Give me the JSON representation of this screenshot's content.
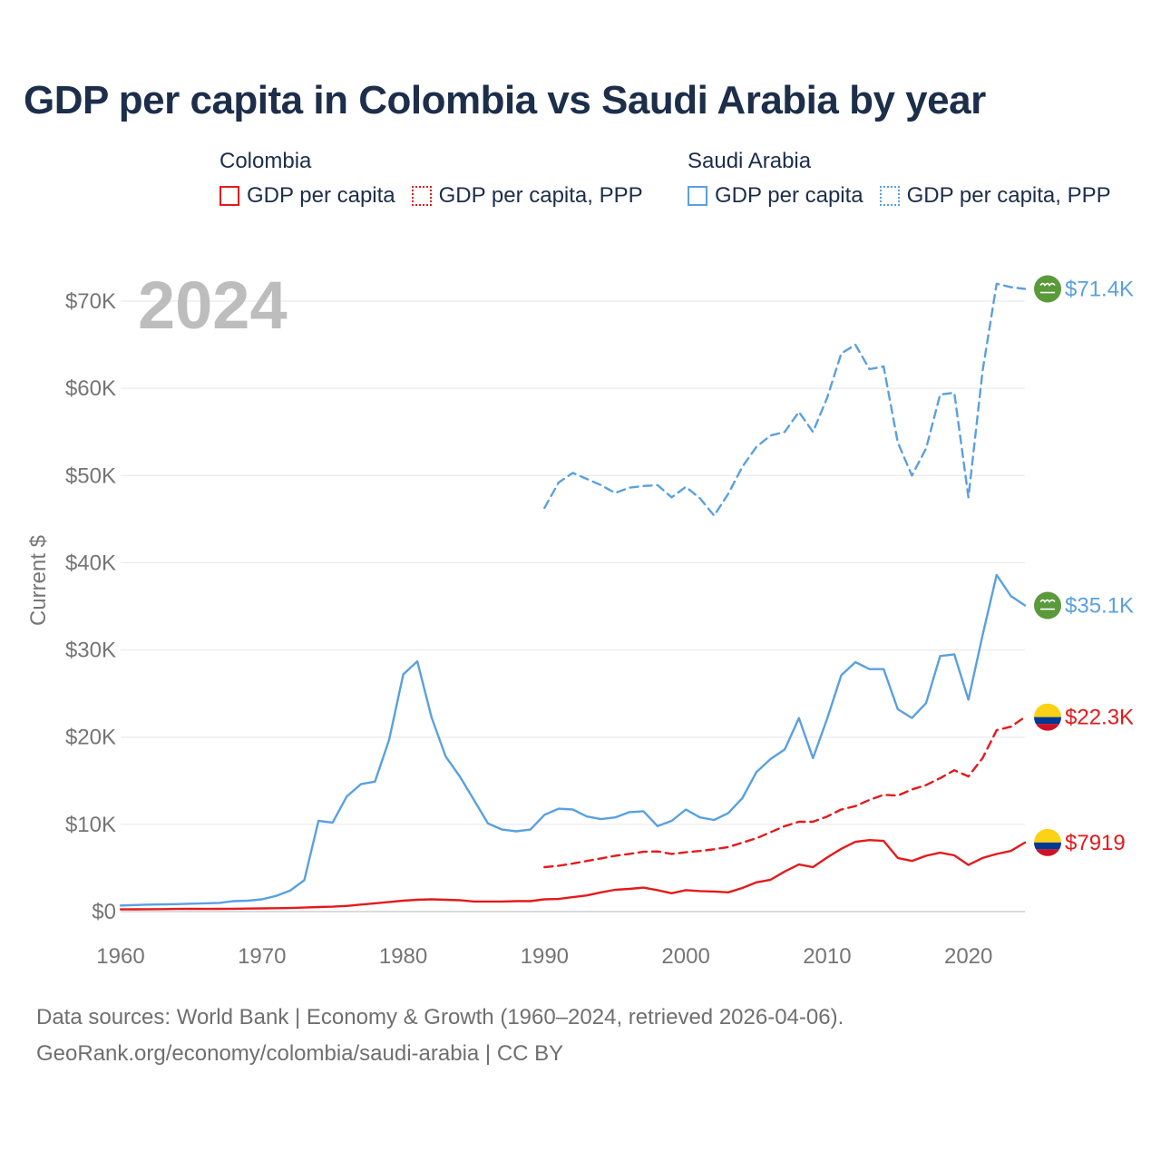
{
  "title": "GDP per capita in Colombia vs Saudi Arabia by year",
  "legend": {
    "colombia": {
      "name": "Colombia",
      "items": [
        {
          "label": "GDP per capita",
          "style": "solid",
          "color": "#e41a1c"
        },
        {
          "label": "GDP per capita, PPP",
          "style": "dotted",
          "color": "#e41a1c"
        }
      ]
    },
    "saudi": {
      "name": "Saudi Arabia",
      "items": [
        {
          "label": "GDP per capita",
          "style": "solid",
          "color": "#5aa0e0"
        },
        {
          "label": "GDP per capita, PPP",
          "style": "dotted",
          "color": "#5aa0e0"
        }
      ]
    }
  },
  "year_label": "2024",
  "sources": {
    "line1": "Data sources: World Bank | Economy & Growth (1960–2024, retrieved 2026-04-06).",
    "line2": "GeoRank.org/economy/colombia/saudi-arabia | CC BY"
  },
  "chart_data": {
    "type": "line",
    "title": "GDP per capita in Colombia vs Saudi Arabia by year",
    "xlabel": "",
    "ylabel": "Current $",
    "xlim": [
      1960,
      2024
    ],
    "ylim": [
      0,
      70000
    ],
    "x_ticks": [
      1960,
      1970,
      1980,
      1990,
      2000,
      2010,
      2020
    ],
    "y_ticks": [
      0,
      10000,
      20000,
      30000,
      40000,
      50000,
      60000,
      70000
    ],
    "y_tick_labels": [
      "$0",
      "$10K",
      "$20K",
      "$30K",
      "$40K",
      "$50K",
      "$60K",
      "$70K"
    ],
    "grid": true,
    "series": [
      {
        "name": "Colombia GDP per capita",
        "color": "#e41a1c",
        "dash": false,
        "end_label": "$7919",
        "flag": "colombia",
        "x": [
          1960,
          1961,
          1962,
          1963,
          1964,
          1965,
          1966,
          1967,
          1968,
          1969,
          1970,
          1971,
          1972,
          1973,
          1974,
          1975,
          1976,
          1977,
          1978,
          1979,
          1980,
          1981,
          1982,
          1983,
          1984,
          1985,
          1986,
          1987,
          1988,
          1989,
          1990,
          1991,
          1992,
          1993,
          1994,
          1995,
          1996,
          1997,
          1998,
          1999,
          2000,
          2001,
          2002,
          2003,
          2004,
          2005,
          2006,
          2007,
          2008,
          2009,
          2010,
          2011,
          2012,
          2013,
          2014,
          2015,
          2016,
          2017,
          2018,
          2019,
          2020,
          2021,
          2022,
          2023,
          2024
        ],
        "values": [
          250,
          260,
          270,
          280,
          300,
          310,
          300,
          310,
          320,
          340,
          360,
          380,
          410,
          460,
          520,
          560,
          650,
          800,
          950,
          1100,
          1250,
          1350,
          1400,
          1350,
          1300,
          1150,
          1150,
          1150,
          1200,
          1200,
          1400,
          1450,
          1650,
          1850,
          2200,
          2500,
          2600,
          2750,
          2450,
          2100,
          2450,
          2350,
          2300,
          2200,
          2700,
          3350,
          3650,
          4600,
          5400,
          5100,
          6200,
          7200,
          8000,
          8200,
          8100,
          6150,
          5800,
          6400,
          6750,
          6450,
          5350,
          6150,
          6600,
          6950,
          7919
        ]
      },
      {
        "name": "Colombia GDP per capita, PPP",
        "color": "#e41a1c",
        "dash": true,
        "end_label": "$22.3K",
        "flag": "colombia",
        "x": [
          1990,
          1991,
          1992,
          1993,
          1994,
          1995,
          1996,
          1997,
          1998,
          1999,
          2000,
          2001,
          2002,
          2003,
          2004,
          2005,
          2006,
          2007,
          2008,
          2009,
          2010,
          2011,
          2012,
          2013,
          2014,
          2015,
          2016,
          2017,
          2018,
          2019,
          2020,
          2021,
          2022,
          2023,
          2024
        ],
        "values": [
          5100,
          5250,
          5500,
          5800,
          6100,
          6400,
          6600,
          6850,
          6900,
          6600,
          6800,
          6950,
          7150,
          7400,
          7900,
          8400,
          9100,
          9800,
          10300,
          10300,
          10900,
          11700,
          12100,
          12800,
          13400,
          13300,
          14000,
          14500,
          15300,
          16200,
          15500,
          17600,
          20800,
          21200,
          22300
        ]
      },
      {
        "name": "Saudi Arabia GDP per capita",
        "color": "#5aa0e0",
        "dash": false,
        "end_label": "$35.1K",
        "flag": "saudi",
        "x": [
          1960,
          1961,
          1962,
          1963,
          1964,
          1965,
          1966,
          1967,
          1968,
          1969,
          1970,
          1971,
          1972,
          1973,
          1974,
          1975,
          1976,
          1977,
          1978,
          1979,
          1980,
          1981,
          1982,
          1983,
          1984,
          1985,
          1986,
          1987,
          1988,
          1989,
          1990,
          1991,
          1992,
          1993,
          1994,
          1995,
          1996,
          1997,
          1998,
          1999,
          2000,
          2001,
          2002,
          2003,
          2004,
          2005,
          2006,
          2007,
          2008,
          2009,
          2010,
          2011,
          2012,
          2013,
          2014,
          2015,
          2016,
          2017,
          2018,
          2019,
          2020,
          2021,
          2022,
          2023,
          2024
        ],
        "values": [
          700,
          750,
          800,
          820,
          850,
          900,
          950,
          1000,
          1200,
          1250,
          1400,
          1800,
          2400,
          3600,
          10400,
          10200,
          13200,
          14600,
          14900,
          19700,
          27200,
          28700,
          22300,
          17800,
          15500,
          12800,
          10100,
          9400,
          9200,
          9400,
          11100,
          11800,
          11700,
          10900,
          10600,
          10800,
          11400,
          11500,
          9800,
          10400,
          11700,
          10800,
          10500,
          11300,
          13000,
          16000,
          17500,
          18600,
          22200,
          17600,
          22100,
          27100,
          28600,
          27800,
          27800,
          23200,
          22200,
          23900,
          29300,
          29500,
          24300,
          31700,
          38600,
          36200,
          35100
        ]
      },
      {
        "name": "Saudi Arabia GDP per capita, PPP",
        "color": "#5aa0e0",
        "dash": true,
        "end_label": "$71.4K",
        "flag": "saudi",
        "x": [
          1990,
          1991,
          1992,
          1993,
          1994,
          1995,
          1996,
          1997,
          1998,
          1999,
          2000,
          2001,
          2002,
          2003,
          2004,
          2005,
          2006,
          2007,
          2008,
          2009,
          2010,
          2011,
          2012,
          2013,
          2014,
          2015,
          2016,
          2017,
          2018,
          2019,
          2020,
          2021,
          2022,
          2023,
          2024
        ],
        "values": [
          46300,
          49200,
          50300,
          49600,
          48900,
          48000,
          48600,
          48800,
          48900,
          47500,
          48700,
          47400,
          45400,
          47900,
          51000,
          53300,
          54600,
          55000,
          57300,
          55000,
          58900,
          64000,
          65000,
          62200,
          62500,
          53800,
          50000,
          53100,
          59300,
          59500,
          47500,
          62000,
          72000,
          71600,
          71400
        ]
      }
    ]
  }
}
